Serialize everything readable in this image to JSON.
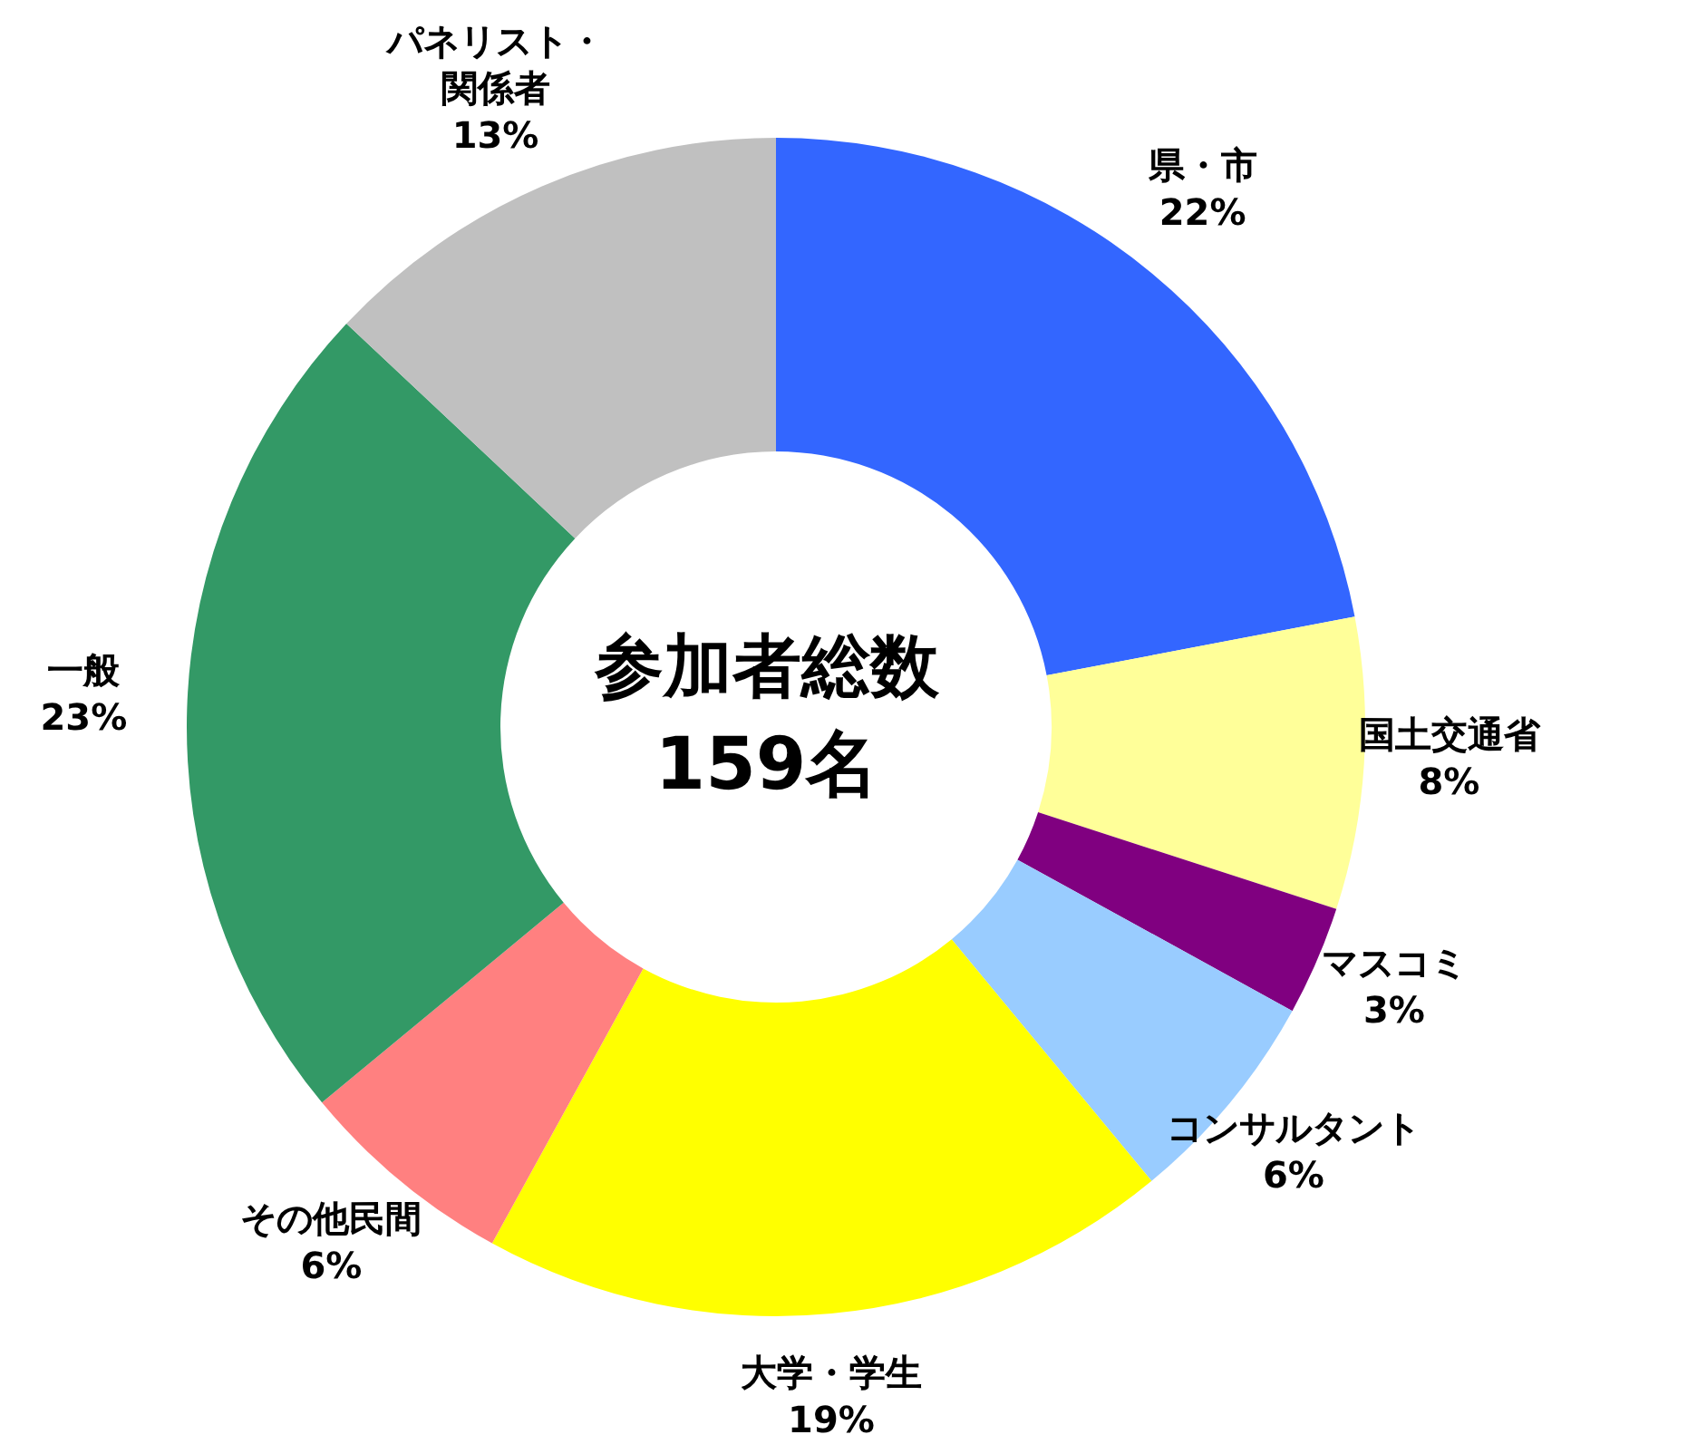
{
  "chart_data": {
    "type": "donut",
    "categories": [
      "県・市",
      "国土交通省",
      "マスコミ",
      "コンサルタント",
      "大学・学生",
      "その他民間",
      "一般",
      "パネリスト・関係者"
    ],
    "values": [
      22,
      8,
      3,
      6,
      19,
      6,
      23,
      13
    ],
    "colors": [
      "#3366ff",
      "#ffff99",
      "#800080",
      "#99ccff",
      "#ffff00",
      "#ff8080",
      "#339966",
      "#c0c0c0"
    ],
    "value_labels": [
      "22%",
      "8%",
      "3%",
      "6%",
      "19%",
      "6%",
      "23%",
      "13%"
    ],
    "annotations": [
      "参加者総数",
      "159名"
    ],
    "legend": false
  }
}
